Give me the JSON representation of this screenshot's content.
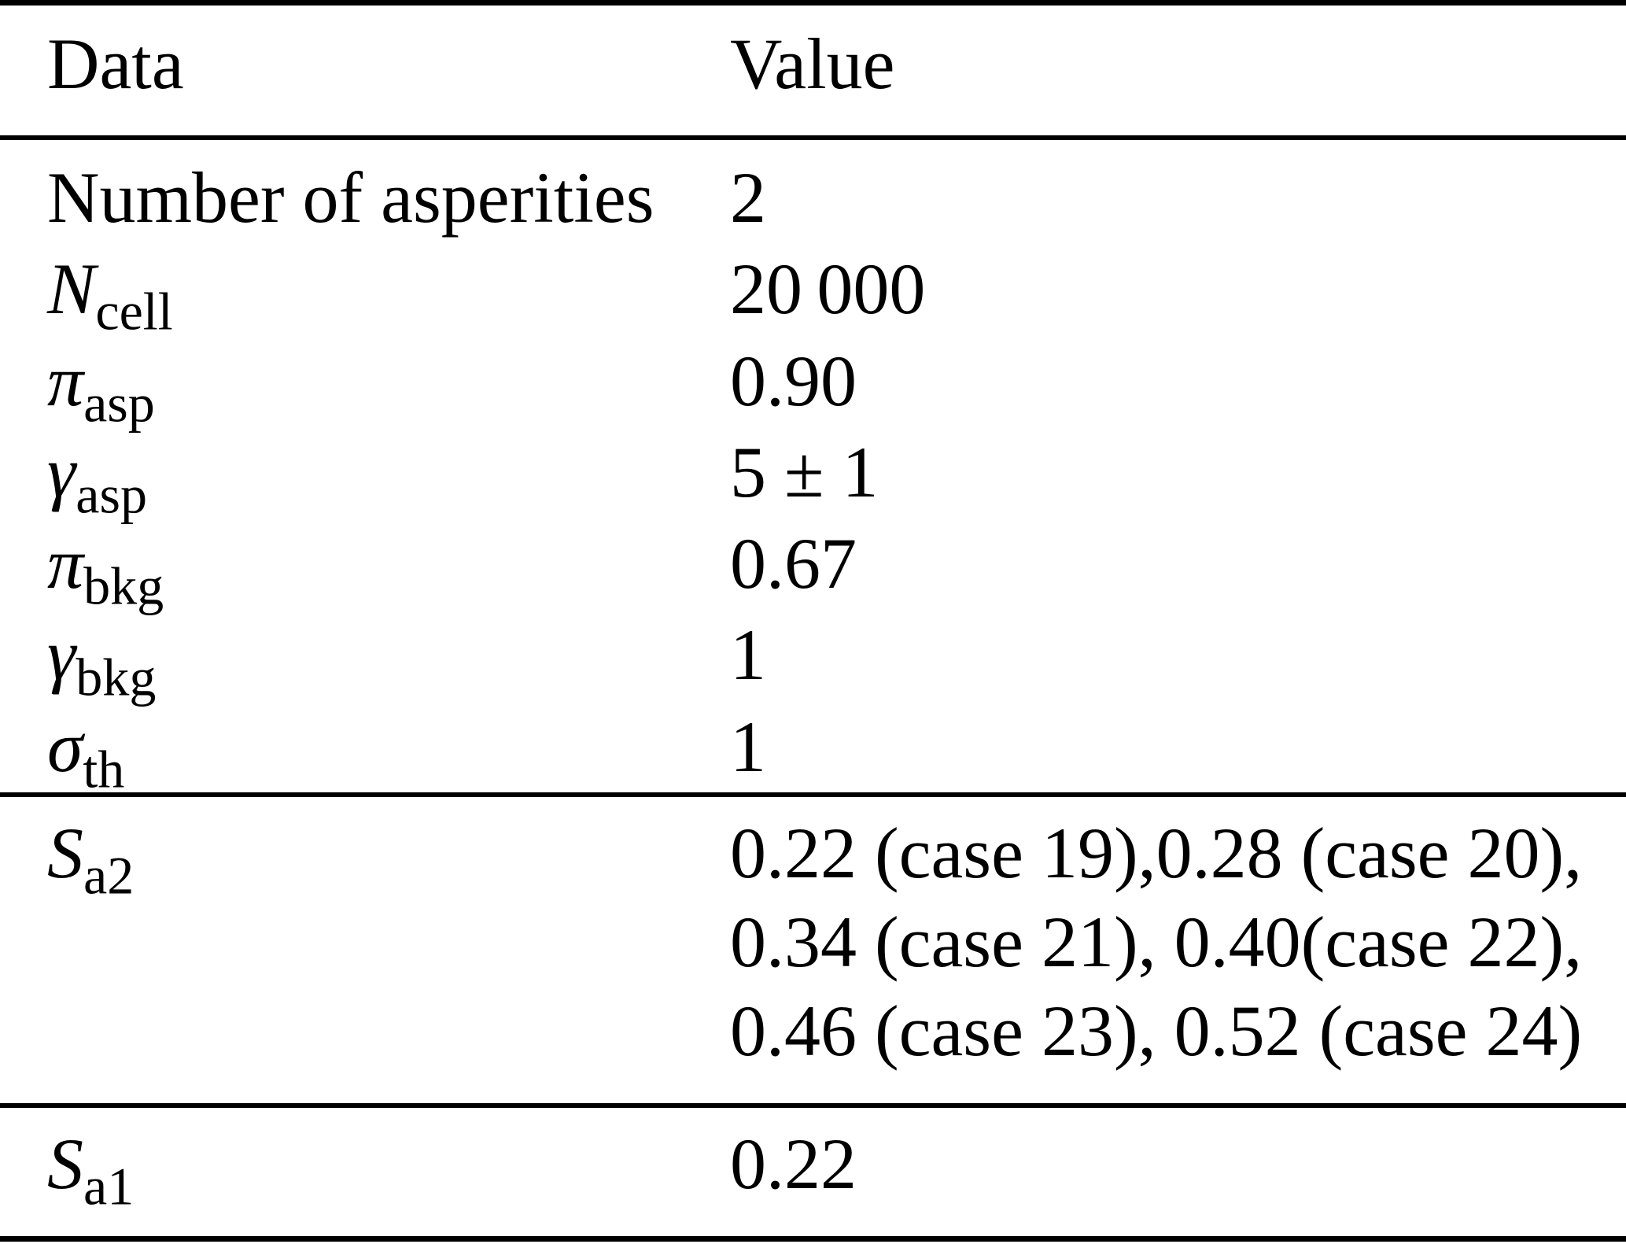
{
  "columns": {
    "data": "Data",
    "value": "Value"
  },
  "sections": [
    {
      "id": "parameters",
      "rows": [
        {
          "label_text": "Number of asperities",
          "value": "2"
        },
        {
          "symbol": "N",
          "subscript": "cell",
          "value": "20 000"
        },
        {
          "symbol": "π",
          "subscript": "asp",
          "value": "0.90"
        },
        {
          "symbol": "γ",
          "subscript": "asp",
          "value": "5 ± 1"
        },
        {
          "symbol": "π",
          "subscript": "bkg",
          "value": "0.67"
        },
        {
          "symbol": "γ",
          "subscript": "bkg",
          "value": "1"
        },
        {
          "symbol": "σ",
          "subscript": "th",
          "value": "1"
        }
      ]
    },
    {
      "id": "sa2",
      "rows": [
        {
          "symbol": "S",
          "subscript": "a2",
          "value_lines": [
            "0.22 (case 19),0.28 (case 20),",
            "0.34 (case 21), 0.40(case 22),",
            "0.46 (case 23), 0.52 (case 24)"
          ]
        }
      ]
    },
    {
      "id": "sa1",
      "rows": [
        {
          "symbol": "S",
          "subscript": "a1",
          "value": "0.22"
        }
      ]
    }
  ]
}
